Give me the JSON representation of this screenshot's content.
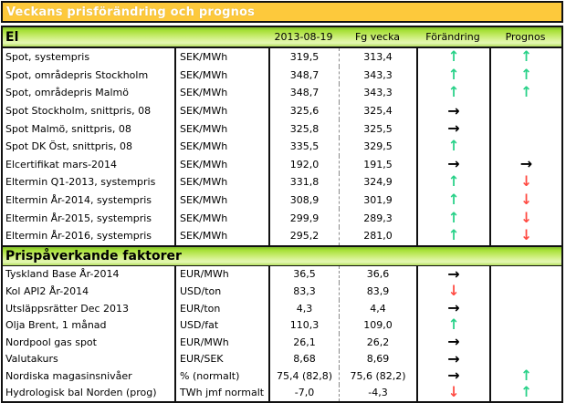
{
  "title": "Veckans prisförändring och prognos",
  "columns": {
    "date": "2013-08-19",
    "prev": "Fg vecka",
    "change": "Förändring",
    "forecast": "Prognos"
  },
  "icons": {
    "up": "↑",
    "down": "↓",
    "right": "→",
    "none": ""
  },
  "colors": {
    "title_bg": "#fdc93c",
    "section_green": "#a5e036",
    "arrow_up": "#28d188",
    "arrow_down": "#ff4a42",
    "arrow_right": "#000000"
  },
  "sections": [
    {
      "name": "El",
      "rows": [
        {
          "label": "Spot, systempris",
          "unit": "SEK/MWh",
          "current": "319,5",
          "previous": "313,4",
          "change": "up",
          "forecast": "up"
        },
        {
          "label": "Spot, områdepris Stockholm",
          "unit": "SEK/MWh",
          "current": "348,7",
          "previous": "343,3",
          "change": "up",
          "forecast": "up"
        },
        {
          "label": "Spot, områdepris Malmö",
          "unit": "SEK/MWh",
          "current": "348,7",
          "previous": "343,3",
          "change": "up",
          "forecast": "up"
        },
        {
          "label": "Spot Stockholm, snittpris,  08",
          "unit": "SEK/MWh",
          "current": "325,6",
          "previous": "325,4",
          "change": "right",
          "forecast": "none"
        },
        {
          "label": "Spot Malmö, snittpris,  08",
          "unit": "SEK/MWh",
          "current": "325,8",
          "previous": "325,5",
          "change": "right",
          "forecast": "none"
        },
        {
          "label": "Spot DK Öst, snittpris,  08",
          "unit": "SEK/MWh",
          "current": "335,5",
          "previous": "329,5",
          "change": "up",
          "forecast": "none"
        },
        {
          "label": "Elcertifikat mars-2014",
          "unit": "SEK/MWh",
          "current": "192,0",
          "previous": "191,5",
          "change": "right",
          "forecast": "right"
        },
        {
          "label": "Eltermin Q1-2013, systempris",
          "unit": "SEK/MWh",
          "current": "331,8",
          "previous": "324,9",
          "change": "up",
          "forecast": "down"
        },
        {
          "label": "Eltermin År-2014, systempris",
          "unit": "SEK/MWh",
          "current": "308,9",
          "previous": "301,9",
          "change": "up",
          "forecast": "down"
        },
        {
          "label": "Eltermin År-2015, systempris",
          "unit": "SEK/MWh",
          "current": "299,9",
          "previous": "289,3",
          "change": "up",
          "forecast": "down"
        },
        {
          "label": "Eltermin År-2016, systempris",
          "unit": "SEK/MWh",
          "current": "295,2",
          "previous": "281,0",
          "change": "up",
          "forecast": "down"
        }
      ]
    },
    {
      "name": "Prispåverkande faktorer",
      "rows": [
        {
          "label": "Tyskland Base År-2014",
          "unit": "EUR/MWh",
          "current": "36,5",
          "previous": "36,6",
          "change": "right",
          "forecast": "none"
        },
        {
          "label": "Kol API2 År-2014",
          "unit": "USD/ton",
          "current": "83,3",
          "previous": "83,9",
          "change": "down",
          "forecast": "none"
        },
        {
          "label": "Utsläppsrätter Dec 2013",
          "unit": "EUR/ton",
          "current": "4,3",
          "previous": "4,4",
          "change": "right",
          "forecast": "none"
        },
        {
          "label": "Olja Brent, 1 månad",
          "unit": "USD/fat",
          "current": "110,3",
          "previous": "109,0",
          "change": "up",
          "forecast": "none"
        },
        {
          "label": "Nordpool gas spot",
          "unit": "EUR/MWh",
          "current": "26,1",
          "previous": "26,2",
          "change": "right",
          "forecast": "none"
        },
        {
          "label": "Valutakurs",
          "unit": "EUR/SEK",
          "current": "8,68",
          "previous": "8,69",
          "change": "right",
          "forecast": "none"
        },
        {
          "label": "Nordiska magasinsnivåer",
          "unit": "%   (normalt)",
          "current": "75,4 (82,8)",
          "previous": "75,6 (82,2)",
          "change": "right",
          "forecast": "up"
        },
        {
          "label": "Hydrologisk bal Norden (prog)",
          "unit": "TWh jmf normalt",
          "current": "-7,0",
          "previous": "-4,3",
          "change": "down",
          "forecast": "up"
        }
      ]
    }
  ]
}
